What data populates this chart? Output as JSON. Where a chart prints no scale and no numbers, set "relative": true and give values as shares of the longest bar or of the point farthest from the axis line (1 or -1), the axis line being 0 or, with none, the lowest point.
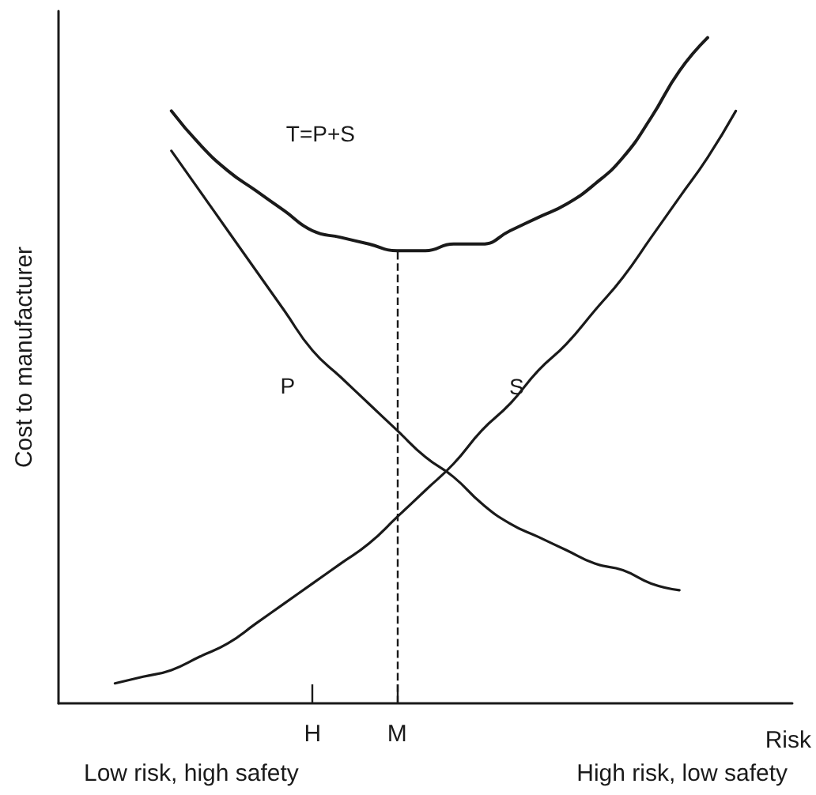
{
  "chart_data": {
    "type": "line",
    "relative": true,
    "xlabel": "Risk",
    "ylabel": "Cost to manufacturer",
    "categories": [
      null,
      null,
      null,
      null,
      null,
      null,
      null,
      null,
      null,
      "H",
      null,
      null,
      "M",
      null,
      null,
      null,
      null,
      null,
      null,
      null,
      null,
      null,
      null,
      null,
      null,
      null,
      null
    ],
    "series": [
      {
        "name": "T=P+S",
        "color": "#1a1a1a",
        "values": [
          null,
          null,
          null,
          null,
          0.89,
          0.84,
          0.8,
          0.77,
          0.74,
          0.71,
          0.7,
          0.69,
          0.68,
          0.68,
          0.69,
          0.69,
          0.71,
          0.73,
          0.75,
          0.78,
          0.82,
          0.88,
          0.95,
          1.0,
          null,
          null,
          null
        ]
      },
      {
        "name": "P",
        "color": "#1a1a1a",
        "values": [
          null,
          null,
          null,
          null,
          0.83,
          0.77,
          0.71,
          0.65,
          0.59,
          0.53,
          0.49,
          0.45,
          0.41,
          0.37,
          0.34,
          0.3,
          0.27,
          0.25,
          0.23,
          0.21,
          0.2,
          0.18,
          0.17,
          null,
          null,
          null,
          null
        ]
      },
      {
        "name": "S",
        "color": "#1a1a1a",
        "values": [
          null,
          null,
          0.03,
          0.04,
          0.05,
          0.07,
          0.09,
          0.12,
          0.15,
          0.18,
          0.21,
          0.24,
          0.28,
          0.32,
          0.36,
          0.41,
          0.45,
          0.5,
          0.54,
          0.59,
          0.64,
          0.7,
          0.76,
          0.82,
          0.89,
          null,
          null
        ]
      }
    ],
    "ref_lines": [
      {
        "axis": "x",
        "value": "M",
        "color": "#1a1a1a",
        "line_style": "dashed"
      }
    ],
    "annotations": [
      "Low risk, high safety",
      "High risk, low safety"
    ],
    "marker": "none",
    "line_style": "solid",
    "grid": false,
    "legend": false
  }
}
